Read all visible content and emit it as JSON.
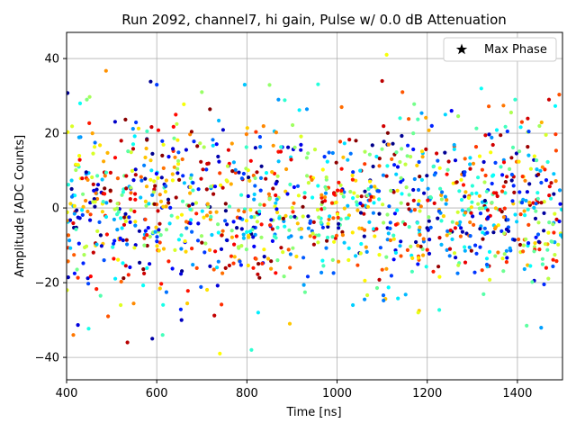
{
  "chart_data": {
    "type": "scatter",
    "title": "Run 2092, channel7, hi gain, Pulse w/ 0.0 dB Attenuation",
    "xlabel": "Time [ns]",
    "ylabel": "Amplitude [ADC Counts]",
    "xlim": [
      400,
      1500
    ],
    "ylim": [
      -46,
      47
    ],
    "xticks": [
      400,
      600,
      800,
      1000,
      1200,
      1400
    ],
    "yticks": [
      -40,
      -20,
      0,
      20,
      40
    ],
    "grid": true,
    "legend": {
      "placement": "top-right",
      "entries": [
        {
          "label": "Max Phase",
          "marker": "star",
          "color": "#000000"
        }
      ]
    },
    "point_color_map": "jet",
    "point_count_estimate": 1300,
    "sample_points": [
      {
        "x": 401,
        "y": -22
      },
      {
        "x": 415,
        "y": -34
      },
      {
        "x": 430,
        "y": 28
      },
      {
        "x": 445,
        "y": 29
      },
      {
        "x": 520,
        "y": -26
      },
      {
        "x": 535,
        "y": -36
      },
      {
        "x": 590,
        "y": -35
      },
      {
        "x": 600,
        "y": 33
      },
      {
        "x": 613,
        "y": -34
      },
      {
        "x": 655,
        "y": -30
      },
      {
        "x": 700,
        "y": 31
      },
      {
        "x": 740,
        "y": -39
      },
      {
        "x": 795,
        "y": 33
      },
      {
        "x": 810,
        "y": -38
      },
      {
        "x": 825,
        "y": -28
      },
      {
        "x": 870,
        "y": 29
      },
      {
        "x": 895,
        "y": -31
      },
      {
        "x": 1010,
        "y": 27
      },
      {
        "x": 1035,
        "y": -26
      },
      {
        "x": 1100,
        "y": 34
      },
      {
        "x": 1110,
        "y": 41
      },
      {
        "x": 1145,
        "y": 31
      },
      {
        "x": 1180,
        "y": -28
      },
      {
        "x": 1240,
        "y": 25
      },
      {
        "x": 1320,
        "y": 32
      },
      {
        "x": 1395,
        "y": 29
      },
      {
        "x": 1410,
        "y": 23
      },
      {
        "x": 1470,
        "y": 29
      }
    ]
  }
}
